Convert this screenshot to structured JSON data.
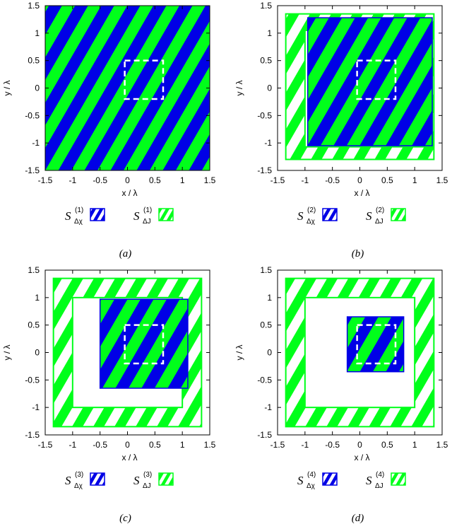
{
  "colors": {
    "blue": "#0000e6",
    "green": "#00ff1a",
    "white": "#ffffff",
    "axis": "#000000"
  },
  "axes": {
    "xlabel": "x / λ",
    "ylabel": "y / λ",
    "xlim": [
      -1.5,
      1.5
    ],
    "ylim": [
      -1.5,
      1.5
    ],
    "xticks": [
      "-1.5",
      "-1",
      "-0.5",
      "0",
      "0.5",
      "1",
      "1.5"
    ],
    "yticks": [
      "-1.5",
      "-1",
      "-0.5",
      "0",
      "0.5",
      "1",
      "1.5"
    ]
  },
  "chart_data": [
    {
      "type": "diagram",
      "panel": "a",
      "caption": "(a)",
      "outer_green_region": [
        -1.5,
        1.5,
        -1.5,
        1.5
      ],
      "inner_hole": null,
      "blue_region": [
        -1.5,
        1.5,
        -1.5,
        1.5
      ],
      "investigation_box": [
        -0.05,
        0.65,
        -0.2,
        0.5
      ],
      "legend": {
        "sym": "S",
        "sub1": "Δχ",
        "sub2": "ΔJ",
        "sup": "(1)"
      }
    },
    {
      "type": "diagram",
      "panel": "b",
      "caption": "(b)",
      "outer_green_region": [
        -1.35,
        1.35,
        -1.3,
        1.35
      ],
      "inner_hole": [
        -1.0,
        1.32,
        -1.07,
        1.05
      ],
      "blue_region": [
        -0.95,
        1.32,
        -1.05,
        1.28
      ],
      "investigation_box": [
        -0.05,
        0.65,
        -0.2,
        0.5
      ],
      "legend": {
        "sym": "S",
        "sub1": "Δχ",
        "sub2": "ΔJ",
        "sup": "(2)"
      }
    },
    {
      "type": "diagram",
      "panel": "c",
      "caption": "(c)",
      "outer_green_region": [
        -1.35,
        1.35,
        -1.35,
        1.35
      ],
      "inner_hole": [
        -1.0,
        1.0,
        -1.0,
        1.0
      ],
      "blue_region": [
        -0.5,
        1.1,
        -0.65,
        0.97
      ],
      "investigation_box": [
        -0.05,
        0.65,
        -0.2,
        0.5
      ],
      "legend": {
        "sym": "S",
        "sub1": "Δχ",
        "sub2": "ΔJ",
        "sup": "(3)"
      }
    },
    {
      "type": "diagram",
      "panel": "d",
      "caption": "(d)",
      "outer_green_region": [
        -1.35,
        1.35,
        -1.35,
        1.35
      ],
      "inner_hole": [
        -1.0,
        1.0,
        -1.0,
        1.0
      ],
      "blue_region": [
        -0.23,
        0.8,
        -0.35,
        0.65
      ],
      "investigation_box": [
        -0.05,
        0.65,
        -0.2,
        0.5
      ],
      "legend": {
        "sym": "S",
        "sub1": "Δχ",
        "sub2": "ΔJ",
        "sup": "(4)"
      }
    }
  ]
}
